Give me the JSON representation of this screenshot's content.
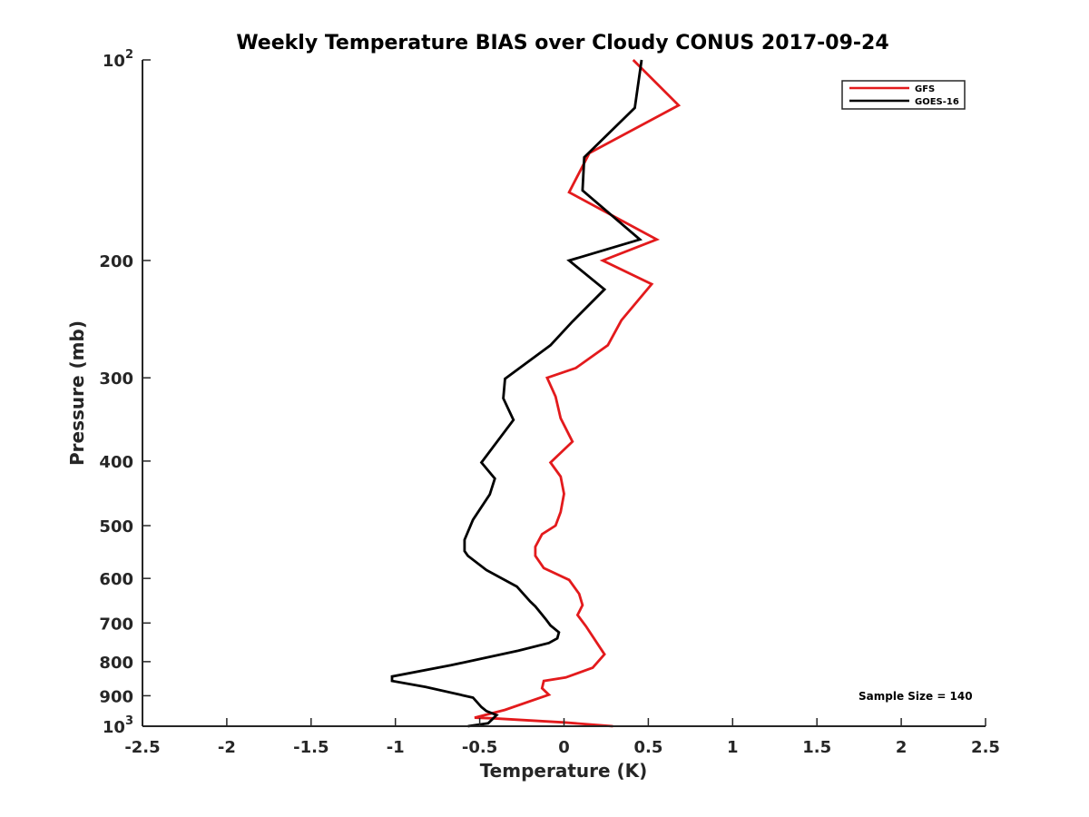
{
  "chart_data": {
    "type": "line",
    "title": "Weekly Temperature BIAS over Cloudy CONUS 2017-09-24",
    "xlabel": "Temperature (K)",
    "ylabel": "Pressure (mb)",
    "xlim": [
      -2.5,
      2.5
    ],
    "ylim": [
      100,
      1000
    ],
    "y_scale": "log",
    "y_reversed": true,
    "x_ticks": [
      -2.5,
      -2,
      -1.5,
      -1,
      -0.5,
      0,
      0.5,
      1,
      1.5,
      2,
      2.5
    ],
    "x_tick_labels": [
      "-2.5",
      "-2",
      "-1.5",
      "-1",
      "-0.5",
      "0",
      "0.5",
      "1",
      "1.5",
      "2",
      "2.5"
    ],
    "y_ticks": [
      100,
      200,
      300,
      400,
      500,
      600,
      700,
      800,
      900,
      1000
    ],
    "y_tick_labels": [
      {
        "base": "10",
        "sup": "2"
      },
      {
        "base": "200"
      },
      {
        "base": "300"
      },
      {
        "base": "400"
      },
      {
        "base": "500"
      },
      {
        "base": "600"
      },
      {
        "base": "700"
      },
      {
        "base": "800"
      },
      {
        "base": "900"
      },
      {
        "base": "10",
        "sup": "3"
      }
    ],
    "grid": false,
    "legend_position": "top-right",
    "annotation": "Sample Size = 140",
    "series": [
      {
        "name": "GFS",
        "color": "#e31a1c",
        "x": [
          0.41,
          0.68,
          0.15,
          0.03,
          0.55,
          0.23,
          0.52,
          0.34,
          0.26,
          0.07,
          -0.1,
          -0.05,
          -0.02,
          0.05,
          -0.08,
          -0.02,
          0.0,
          -0.02,
          -0.05,
          -0.13,
          -0.17,
          -0.17,
          -0.12,
          0.03,
          0.09,
          0.11,
          0.08,
          0.13,
          0.24,
          0.17,
          0.01,
          -0.12,
          -0.13,
          -0.09,
          -0.35,
          -0.53,
          -0.42,
          0.0,
          0.29
        ],
        "y": [
          100,
          117,
          138,
          158,
          186,
          200,
          217,
          246,
          268,
          290,
          300,
          320,
          345,
          374,
          402,
          422,
          448,
          477,
          500,
          515,
          538,
          555,
          579,
          603,
          633,
          658,
          681,
          708,
          780,
          817,
          845,
          855,
          877,
          897,
          945,
          971,
          973,
          987,
          1000
        ]
      },
      {
        "name": "GOES-16",
        "color": "#000000",
        "x": [
          0.46,
          0.42,
          0.12,
          0.11,
          0.45,
          0.03,
          0.24,
          0.05,
          -0.08,
          -0.35,
          -0.36,
          -0.3,
          -0.49,
          -0.41,
          -0.44,
          -0.54,
          -0.59,
          -0.59,
          -0.57,
          -0.46,
          -0.28,
          -0.2,
          -0.17,
          -0.11,
          -0.08,
          -0.03,
          -0.04,
          -0.09,
          -0.27,
          -0.67,
          -1.02,
          -1.02,
          -0.82,
          -0.54,
          -0.49,
          -0.46,
          -0.4,
          -0.45,
          -0.57
        ],
        "y": [
          100,
          118,
          140,
          157,
          186,
          200,
          221,
          247,
          268,
          301,
          322,
          347,
          402,
          425,
          449,
          490,
          525,
          546,
          555,
          583,
          617,
          650,
          661,
          690,
          706,
          723,
          738,
          750,
          770,
          810,
          842,
          855,
          873,
          906,
          936,
          949,
          962,
          990,
          1000
        ]
      }
    ]
  }
}
